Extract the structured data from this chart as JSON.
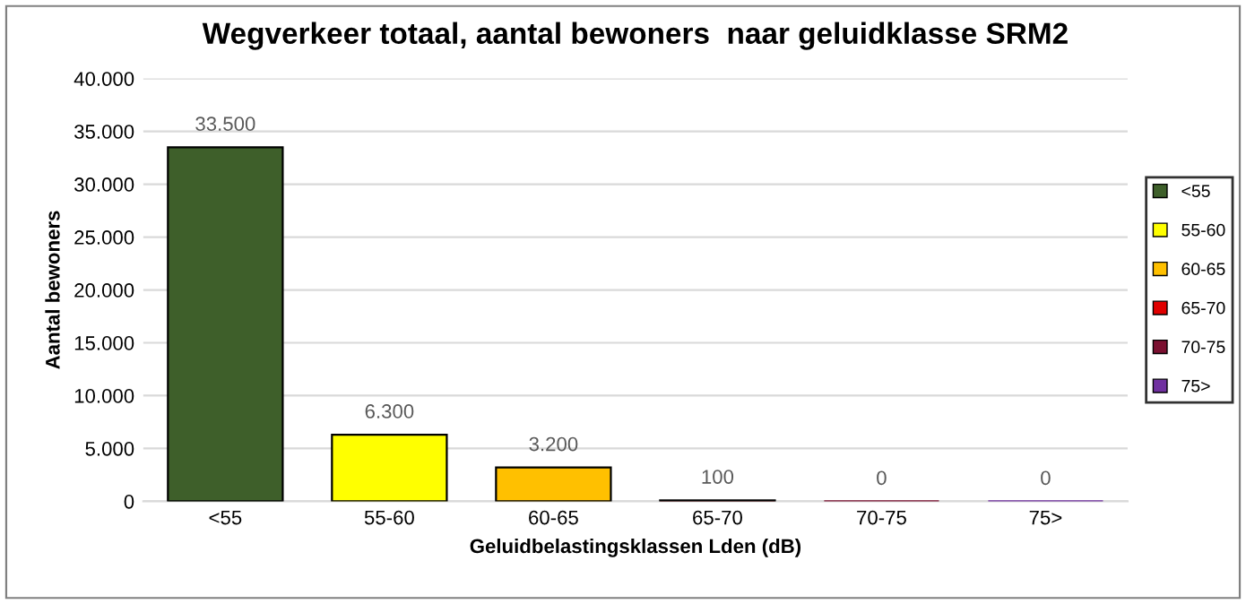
{
  "chart_data": {
    "type": "bar",
    "title": "Wegverkeer totaal, aantal bewoners  naar geluidklasse SRM2",
    "xlabel": "Geluidbelastingsklassen Lden (dB)",
    "ylabel": "Aantal bewoners",
    "categories": [
      "<55",
      "55-60",
      "60-65",
      "65-70",
      "70-75",
      "75>"
    ],
    "series": [
      {
        "name": "<55",
        "color": "#3e5f2a",
        "values": [
          33500,
          null,
          null,
          null,
          null,
          null
        ],
        "value_labels": [
          "33.500",
          null,
          null,
          null,
          null,
          null
        ]
      },
      {
        "name": "55-60",
        "color": "#ffff00",
        "values": [
          null,
          6300,
          null,
          null,
          null,
          null
        ],
        "value_labels": [
          null,
          "6.300",
          null,
          null,
          null,
          null
        ]
      },
      {
        "name": "60-65",
        "color": "#ffc000",
        "values": [
          null,
          null,
          3200,
          null,
          null,
          null
        ],
        "value_labels": [
          null,
          null,
          "3.200",
          null,
          null,
          null
        ]
      },
      {
        "name": "65-70",
        "color": "#e00000",
        "values": [
          null,
          null,
          null,
          100,
          null,
          null
        ],
        "value_labels": [
          null,
          null,
          null,
          "100",
          null,
          null
        ]
      },
      {
        "name": "70-75",
        "color": "#7b1030",
        "values": [
          null,
          null,
          null,
          null,
          0,
          null
        ],
        "value_labels": [
          null,
          null,
          null,
          null,
          "0",
          null
        ]
      },
      {
        "name": "75>",
        "color": "#7030a0",
        "values": [
          null,
          null,
          null,
          null,
          null,
          0
        ],
        "value_labels": [
          null,
          null,
          null,
          null,
          null,
          "0"
        ]
      }
    ],
    "ylim": [
      0,
      40000
    ],
    "yticks": [
      {
        "value": 0,
        "label": "0"
      },
      {
        "value": 5000,
        "label": "5.000"
      },
      {
        "value": 10000,
        "label": "10.000"
      },
      {
        "value": 15000,
        "label": "15.000"
      },
      {
        "value": 20000,
        "label": "20.000"
      },
      {
        "value": 25000,
        "label": "25.000"
      },
      {
        "value": 30000,
        "label": "30.000"
      },
      {
        "value": 35000,
        "label": "35.000"
      },
      {
        "value": 40000,
        "label": "40.000"
      }
    ],
    "grid": "y",
    "legend": "right"
  }
}
